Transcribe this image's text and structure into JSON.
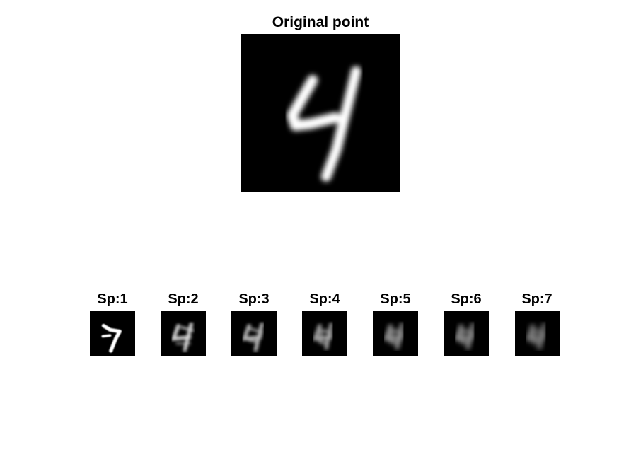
{
  "figure": {
    "main_title": "Original point",
    "subplot_titles": [
      "Sp:1",
      "Sp:2",
      "Sp:3",
      "Sp:4",
      "Sp:5",
      "Sp:6",
      "Sp:7"
    ],
    "colors": {
      "background": "#000000",
      "stroke": "#ffffff"
    }
  }
}
